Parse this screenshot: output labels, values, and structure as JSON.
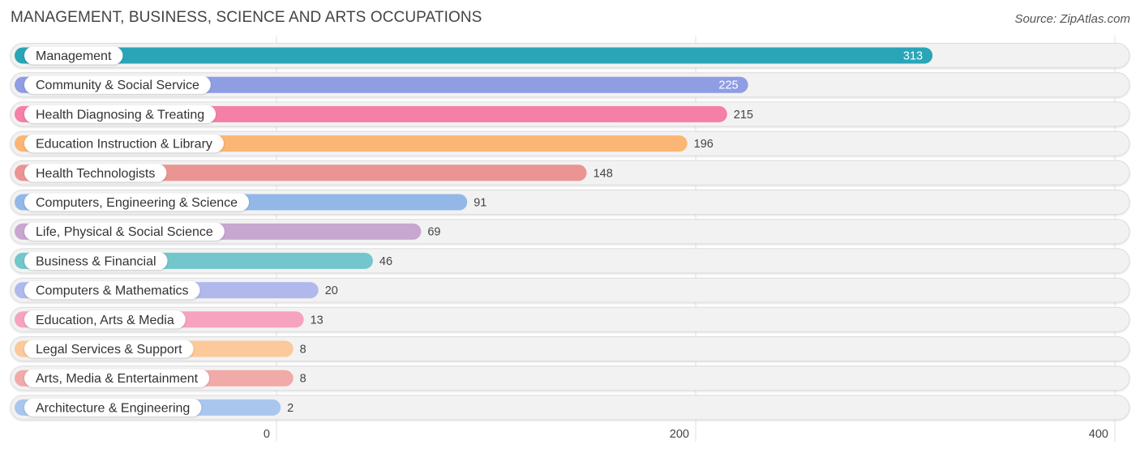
{
  "header": {
    "title": "MANAGEMENT, BUSINESS, SCIENCE AND ARTS OCCUPATIONS",
    "source": "Source: ZipAtlas.com"
  },
  "chart_data": {
    "type": "bar",
    "orientation": "horizontal",
    "categories": [
      "Management",
      "Community & Social Service",
      "Health Diagnosing & Treating",
      "Education Instruction & Library",
      "Health Technologists",
      "Computers, Engineering & Science",
      "Life, Physical & Social Science",
      "Business & Financial",
      "Computers & Mathematics",
      "Education, Arts & Media",
      "Legal Services & Support",
      "Arts, Media & Entertainment",
      "Architecture & Engineering"
    ],
    "values": [
      313,
      225,
      215,
      196,
      148,
      91,
      69,
      46,
      20,
      13,
      8,
      8,
      2
    ],
    "colors": [
      "#2aa5b8",
      "#8f9de3",
      "#f57fa6",
      "#fbb574",
      "#ea9593",
      "#93b8e8",
      "#c7a6cf",
      "#72c6cc",
      "#b1b8ec",
      "#f6a3c0",
      "#fbc99a",
      "#f1aaa8",
      "#a9c6ee"
    ],
    "x_ticks": [
      "0",
      "200",
      "400"
    ],
    "xlim": [
      0,
      400
    ],
    "grid": true
  }
}
